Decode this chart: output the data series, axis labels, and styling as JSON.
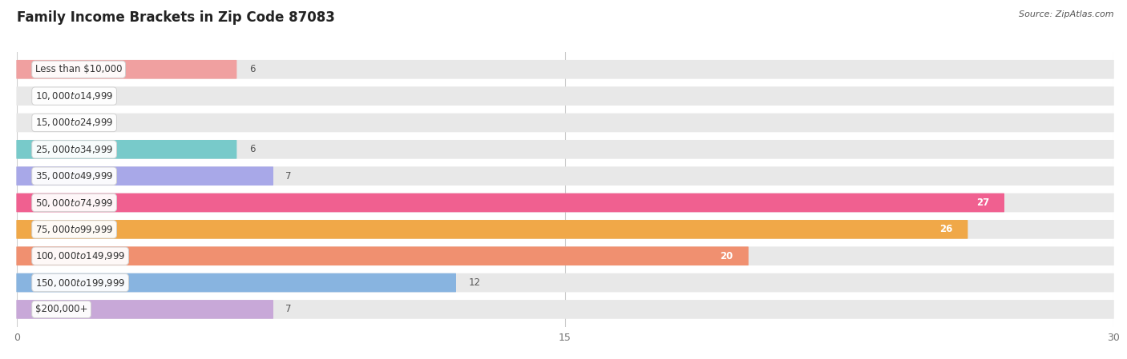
{
  "title": "Family Income Brackets in Zip Code 87083",
  "source": "Source: ZipAtlas.com",
  "categories": [
    "Less than $10,000",
    "$10,000 to $14,999",
    "$15,000 to $24,999",
    "$25,000 to $34,999",
    "$35,000 to $49,999",
    "$50,000 to $74,999",
    "$75,000 to $99,999",
    "$100,000 to $149,999",
    "$150,000 to $199,999",
    "$200,000+"
  ],
  "values": [
    6,
    0,
    0,
    6,
    7,
    27,
    26,
    20,
    12,
    7
  ],
  "colors": [
    "#F0A0A0",
    "#A8C0E8",
    "#C8A8E8",
    "#78CACA",
    "#A8A8E8",
    "#F0609090",
    "#F0A040",
    "#F08878",
    "#88B8E0",
    "#C8A8D8"
  ],
  "bar_colors": [
    "#F0A0A0",
    "#A8C0E8",
    "#C8A8E8",
    "#78CACA",
    "#A8A8E8",
    "#F06090",
    "#F0A848",
    "#F09070",
    "#88B4E0",
    "#C8A8D8"
  ],
  "xlim_max": 30,
  "xticks": [
    0,
    15,
    30
  ],
  "background_color": "#ffffff",
  "bar_bg_color": "#e8e8e8",
  "title_fontsize": 12,
  "label_fontsize": 8.5,
  "value_fontsize": 8.5
}
